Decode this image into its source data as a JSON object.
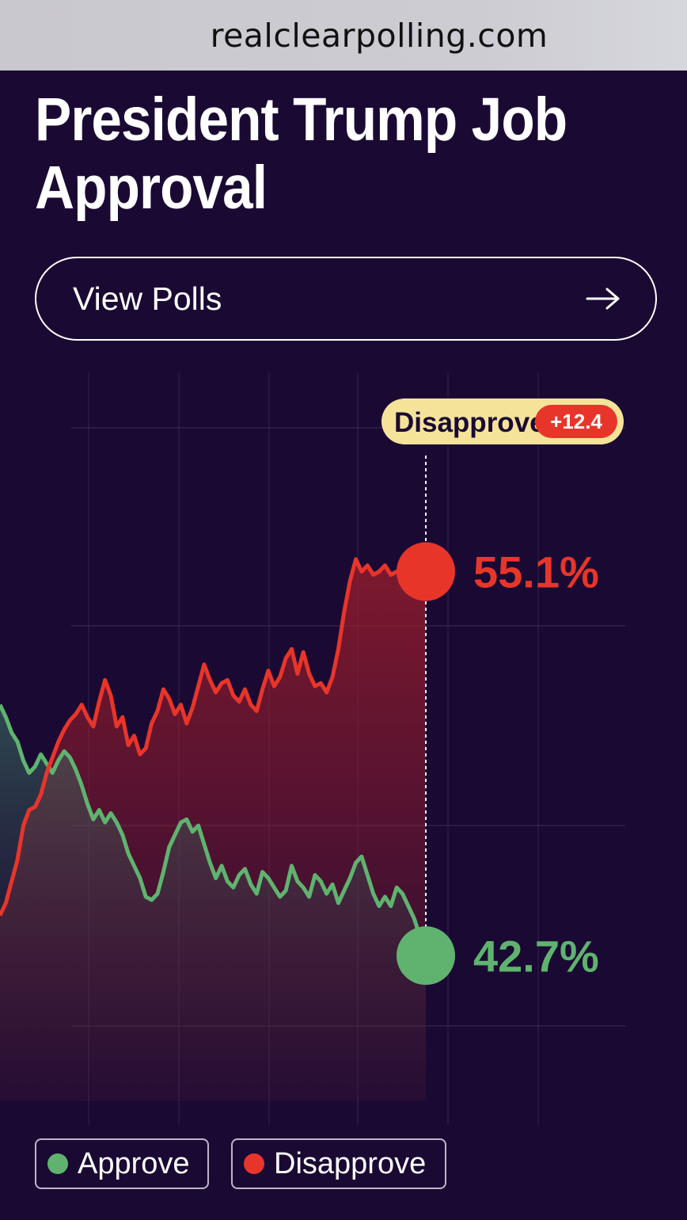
{
  "browser": {
    "url": "realclearpolling.com"
  },
  "page": {
    "title": "President Trump Job Approval"
  },
  "view_polls": {
    "label": "View Polls",
    "icon": "arrow-right-icon"
  },
  "chart_data": {
    "type": "area",
    "title": "President Trump Job Approval",
    "xlabel": "",
    "ylabel": "",
    "ylim": [
      38,
      60
    ],
    "grid": true,
    "legend_placement": "bottom-left",
    "spread": {
      "label": "Disapprove",
      "value": "+12.4",
      "leader": "disapprove"
    },
    "series": [
      {
        "name": "Approve",
        "color": "#5fb36f",
        "latest_label": "42.7%",
        "values": [
          50.8,
          50.4,
          49.9,
          49.6,
          49.0,
          48.6,
          48.8,
          49.2,
          48.9,
          48.6,
          49.0,
          49.3,
          49.1,
          48.7,
          48.2,
          47.6,
          47.1,
          47.4,
          47.0,
          47.3,
          47.0,
          46.6,
          46.0,
          45.6,
          45.2,
          44.6,
          44.5,
          44.7,
          45.4,
          46.2,
          46.6,
          47.0,
          47.1,
          46.7,
          46.9,
          46.3,
          45.7,
          45.2,
          45.6,
          45.1,
          44.9,
          45.3,
          45.5,
          45.0,
          44.7,
          45.4,
          45.2,
          44.9,
          44.6,
          44.8,
          45.6,
          45.1,
          44.9,
          44.6,
          45.3,
          45.1,
          44.7,
          45.0,
          44.4,
          44.8,
          45.2,
          45.7,
          45.9,
          45.3,
          44.7,
          44.3,
          44.6,
          44.3,
          44.9,
          44.7,
          44.3,
          43.9,
          43.3,
          42.7
        ],
        "source_color_hint": "green"
      },
      {
        "name": "Disapprove",
        "color": "#e8352a",
        "latest_label": "55.1%",
        "values": [
          44.0,
          44.4,
          45.1,
          45.8,
          46.9,
          47.4,
          47.5,
          47.9,
          48.6,
          49.1,
          49.6,
          50.0,
          50.3,
          50.5,
          50.8,
          50.4,
          50.1,
          50.9,
          51.6,
          51.1,
          50.1,
          50.4,
          49.5,
          49.8,
          49.2,
          49.4,
          50.2,
          50.6,
          51.3,
          51.0,
          50.5,
          50.8,
          50.2,
          50.7,
          51.4,
          52.1,
          51.6,
          51.2,
          51.5,
          51.6,
          51.1,
          50.9,
          51.3,
          50.8,
          50.6,
          51.3,
          51.9,
          51.4,
          51.7,
          52.3,
          52.6,
          51.8,
          52.5,
          51.8,
          51.4,
          51.5,
          51.2,
          51.7,
          52.6,
          53.8,
          54.8,
          55.5,
          55.1,
          55.3,
          55.0,
          55.1,
          55.3,
          55.0,
          55.1,
          55.2,
          55.0,
          55.1,
          55.2,
          55.1
        ],
        "source_color_hint": "red"
      }
    ],
    "legend": [
      {
        "label": "Approve",
        "color": "#5fb36f"
      },
      {
        "label": "Disapprove",
        "color": "#e8352a"
      }
    ]
  },
  "colors": {
    "background": "#1a0a33",
    "approve": "#5fb36f",
    "disapprove": "#e8352a",
    "spread_badge_bg": "#f6e39a",
    "grid": "#3a2a55"
  }
}
